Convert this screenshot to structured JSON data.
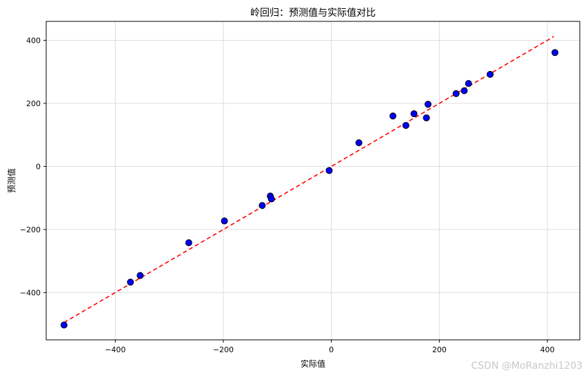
{
  "chart_data": {
    "type": "scatter",
    "title": "岭回归：预测值与实际值对比",
    "xlabel": "实际值",
    "ylabel": "预测值",
    "xlim": [
      -528,
      460
    ],
    "ylim": [
      -550,
      460
    ],
    "xticks": [
      -400,
      -200,
      0,
      200,
      400
    ],
    "yticks": [
      -400,
      -200,
      0,
      200,
      400
    ],
    "grid": true,
    "point_color": "#0000ff",
    "point_edge_color": "#000000",
    "reference_line": {
      "x": [
        -495,
        412
      ],
      "y": [
        -495,
        412
      ],
      "color": "#ff0000",
      "style": "dashed"
    },
    "points": [
      {
        "x": -495,
        "y": -503
      },
      {
        "x": -372,
        "y": -367
      },
      {
        "x": -354,
        "y": -346
      },
      {
        "x": -264,
        "y": -242
      },
      {
        "x": -198,
        "y": -173
      },
      {
        "x": -128,
        "y": -124
      },
      {
        "x": -113,
        "y": -94
      },
      {
        "x": -111,
        "y": -103
      },
      {
        "x": -4,
        "y": -13
      },
      {
        "x": 51,
        "y": 75
      },
      {
        "x": 114,
        "y": 160
      },
      {
        "x": 138,
        "y": 130
      },
      {
        "x": 153,
        "y": 167
      },
      {
        "x": 176,
        "y": 154
      },
      {
        "x": 179,
        "y": 197
      },
      {
        "x": 231,
        "y": 231
      },
      {
        "x": 246,
        "y": 240
      },
      {
        "x": 254,
        "y": 263
      },
      {
        "x": 294,
        "y": 292
      },
      {
        "x": 414,
        "y": 361
      }
    ]
  },
  "watermark": "CSDN @MoRanzhi1203"
}
